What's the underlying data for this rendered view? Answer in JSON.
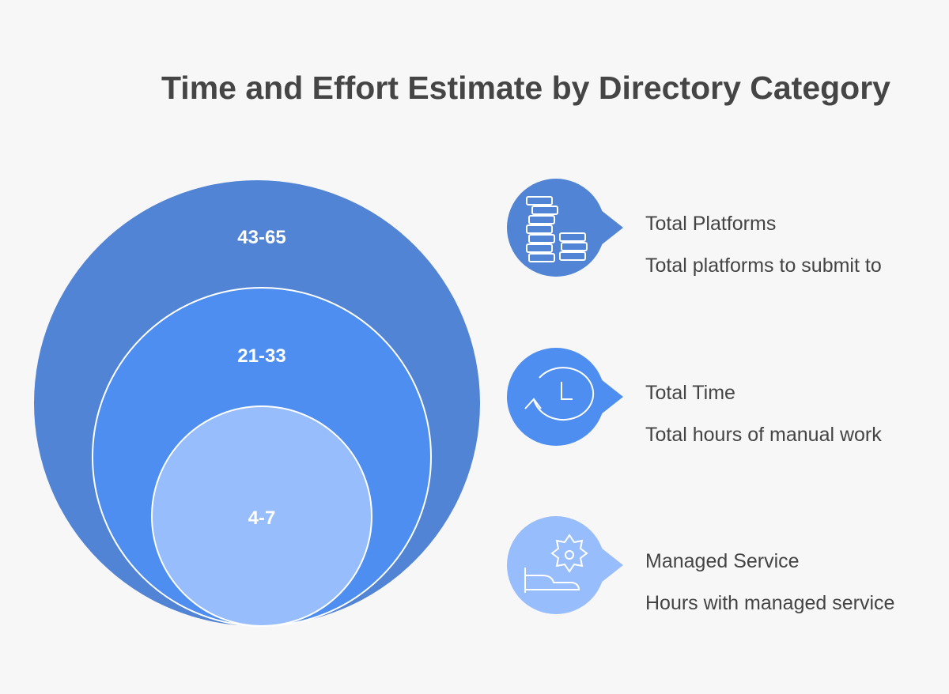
{
  "title": "Time and Effort Estimate by Directory Category",
  "colors": {
    "outer": "#5284d6",
    "middle": "#4d8ef0",
    "inner": "#98bdfc",
    "background": "#f8f7f8"
  },
  "circles": [
    {
      "value": "43-65"
    },
    {
      "value": "21-33"
    },
    {
      "value": "4-7"
    }
  ],
  "legend": [
    {
      "icon": "coin-stacks-icon",
      "title": "Total Platforms",
      "description": "Total platforms to submit to"
    },
    {
      "icon": "clock-history-icon",
      "title": "Total Time",
      "description": "Total hours of manual work"
    },
    {
      "icon": "hand-gear-icon",
      "title": "Managed Service",
      "description": "Hours with managed service"
    }
  ]
}
